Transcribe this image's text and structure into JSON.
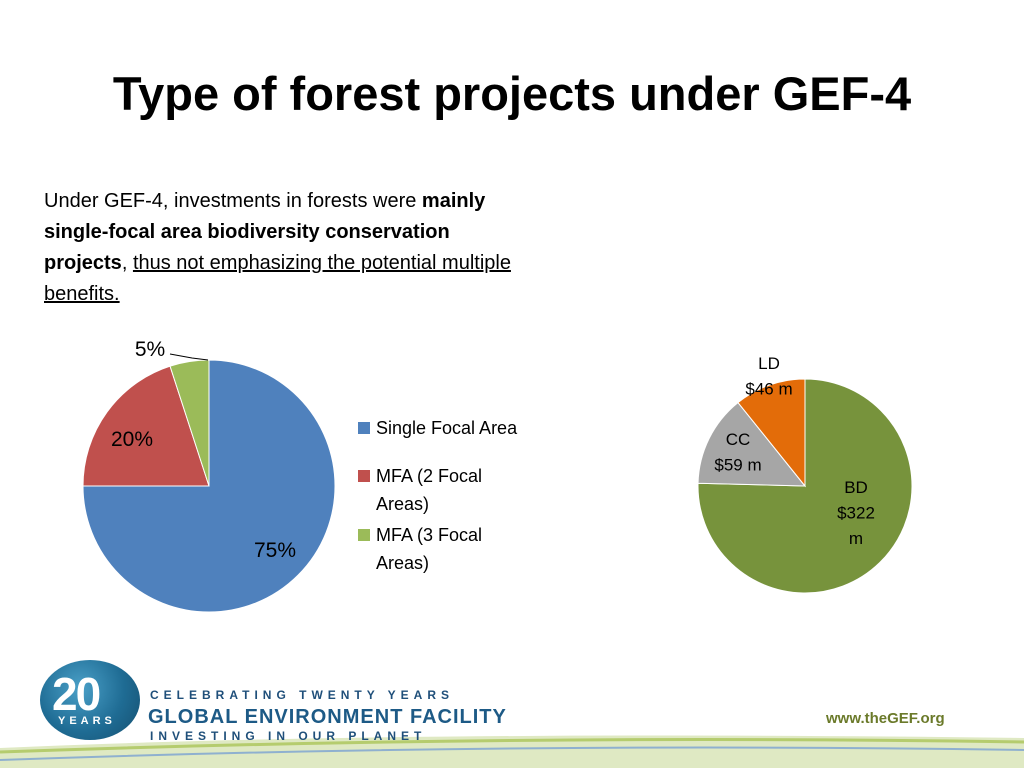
{
  "title": "Type of forest projects under GEF-4",
  "intro": {
    "line1": "Under GEF-4, investments in forests were",
    "bold": "mainly single-focal area biodiversity conservation projects",
    "comma": ",",
    "underlined": "thus not emphasizing the potential multiple benefits."
  },
  "chart_data": [
    {
      "type": "pie",
      "title": "",
      "slices": [
        {
          "label": "Single Focal Area",
          "value": 75,
          "display": "75%",
          "color": "#4f81bd"
        },
        {
          "label": "MFA (2 Focal Areas)",
          "value": 20,
          "display": "20%",
          "color": "#c0504d"
        },
        {
          "label": "MFA (3 Focal Areas)",
          "value": 5,
          "display": "5%",
          "color": "#9bbb59"
        }
      ],
      "legend": "right",
      "legend_labels": [
        "Single Focal Area",
        "MFA (2 Focal Areas)",
        "MFA (3 Focal Areas)"
      ]
    },
    {
      "type": "pie",
      "title": "",
      "slices": [
        {
          "label": "BD",
          "value": 322,
          "display": "$322 m",
          "color": "#77933c"
        },
        {
          "label": "CC",
          "value": 59,
          "display": "$59 m",
          "color": "#a6a6a6"
        },
        {
          "label": "LD",
          "value": 46,
          "display": "$46 m",
          "color": "#e36c09"
        }
      ]
    }
  ],
  "footer": {
    "logo_number": "20",
    "logo_years": "YEARS",
    "celebrating": "CELEBRATING TWENTY YEARS",
    "org_name": "GLOBAL ENVIRONMENT FACILITY",
    "tagline": "INVESTING IN OUR PLANET",
    "website": "www.theGEF.org"
  }
}
